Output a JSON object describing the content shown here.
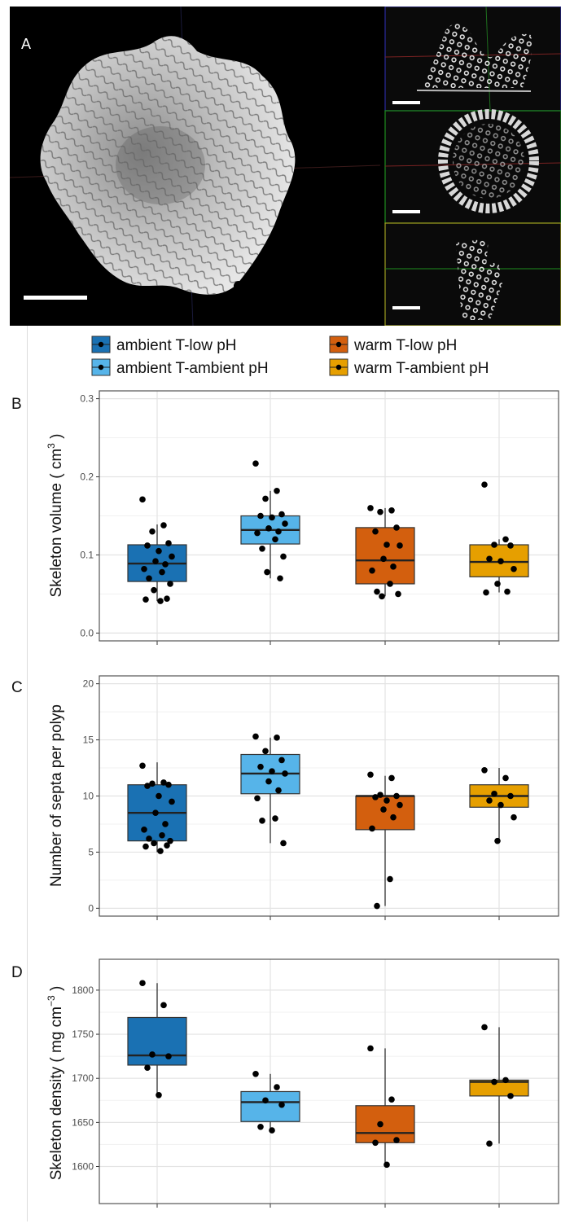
{
  "panel_a": {
    "label": "A"
  },
  "legend": {
    "items": [
      {
        "label": "ambient T-low pH",
        "color": "#1a71b3"
      },
      {
        "label": "warm T-low pH",
        "color": "#d35f0e"
      },
      {
        "label": "ambient T-ambient pH",
        "color": "#56b4e9"
      },
      {
        "label": "warm T-ambient pH",
        "color": "#e69f00"
      }
    ]
  },
  "chart_data": [
    {
      "type": "box",
      "panel": "B",
      "ylabel": "Skeleton volume ( cm",
      "ylabel_sup": "3",
      "ylabel_end": " )",
      "ylim": [
        -0.01,
        0.31
      ],
      "yticks": [
        0.0,
        0.1,
        0.2,
        0.3
      ],
      "ytick_labels": [
        "0.0",
        "0.1",
        "0.2",
        "0.3"
      ],
      "groups": [
        {
          "name": "ambient T-low pH",
          "color": "#1a71b3",
          "q1": 0.066,
          "median": 0.089,
          "q3": 0.113,
          "whisker_low": 0.041,
          "whisker_high": 0.139,
          "points": [
            0.171,
            0.138,
            0.13,
            0.115,
            0.112,
            0.105,
            0.098,
            0.092,
            0.088,
            0.082,
            0.078,
            0.07,
            0.063,
            0.055,
            0.044,
            0.043,
            0.041
          ]
        },
        {
          "name": "ambient T-ambient pH",
          "color": "#56b4e9",
          "q1": 0.114,
          "median": 0.132,
          "q3": 0.15,
          "whisker_low": 0.07,
          "whisker_high": 0.182,
          "points": [
            0.217,
            0.182,
            0.172,
            0.152,
            0.15,
            0.148,
            0.14,
            0.134,
            0.13,
            0.128,
            0.12,
            0.108,
            0.098,
            0.078,
            0.07
          ]
        },
        {
          "name": "warm T-low pH",
          "color": "#d35f0e",
          "q1": 0.063,
          "median": 0.093,
          "q3": 0.135,
          "whisker_low": 0.047,
          "whisker_high": 0.16,
          "points": [
            0.16,
            0.157,
            0.155,
            0.135,
            0.13,
            0.113,
            0.112,
            0.095,
            0.085,
            0.08,
            0.063,
            0.053,
            0.05,
            0.047
          ]
        },
        {
          "name": "warm T-ambient pH",
          "color": "#e69f00",
          "q1": 0.072,
          "median": 0.091,
          "q3": 0.113,
          "whisker_low": 0.052,
          "whisker_high": 0.12,
          "points": [
            0.19,
            0.12,
            0.113,
            0.112,
            0.095,
            0.092,
            0.082,
            0.063,
            0.053,
            0.052
          ]
        }
      ]
    },
    {
      "type": "box",
      "panel": "C",
      "ylabel": "Number of septa per polyp",
      "ylabel_sup": "",
      "ylabel_end": "",
      "ylim": [
        -0.7,
        20.7
      ],
      "yticks": [
        0,
        5,
        10,
        15,
        20
      ],
      "ytick_labels": [
        "0",
        "5",
        "10",
        "15",
        "20"
      ],
      "groups": [
        {
          "name": "ambient T-low pH",
          "color": "#1a71b3",
          "q1": 6,
          "median": 8.5,
          "q3": 11,
          "whisker_low": 5,
          "whisker_high": 13,
          "points": [
            12.7,
            11.2,
            11.1,
            11,
            10.9,
            10,
            9.5,
            8.5,
            7.5,
            7,
            6.5,
            6.2,
            6,
            5.8,
            5.6,
            5.5,
            5.1
          ]
        },
        {
          "name": "ambient T-ambient pH",
          "color": "#56b4e9",
          "q1": 10.2,
          "median": 12,
          "q3": 13.7,
          "whisker_low": 5.8,
          "whisker_high": 15.2,
          "points": [
            15.3,
            15.2,
            14,
            13.2,
            12.6,
            12.2,
            12,
            11.3,
            10.5,
            9.8,
            8,
            7.8,
            5.8
          ]
        },
        {
          "name": "warm T-low pH",
          "color": "#d35f0e",
          "q1": 7,
          "median": 10,
          "q3": 10,
          "whisker_low": 0.2,
          "whisker_high": 11.8,
          "points": [
            11.9,
            11.6,
            10.1,
            10,
            9.9,
            9.6,
            9.2,
            8.8,
            8.1,
            7.1,
            2.6,
            0.2
          ]
        },
        {
          "name": "warm T-ambient pH",
          "color": "#e69f00",
          "q1": 9,
          "median": 10,
          "q3": 11,
          "whisker_low": 6,
          "whisker_high": 12.5,
          "points": [
            12.3,
            11.6,
            10.2,
            10,
            9.6,
            9.2,
            8.1,
            6
          ]
        }
      ]
    },
    {
      "type": "box",
      "panel": "D",
      "ylabel": "Skeleton density ( mg  cm",
      "ylabel_sup": "−3",
      "ylabel_end": " )",
      "ylim": [
        1558,
        1835
      ],
      "yticks": [
        1600,
        1650,
        1700,
        1750,
        1800
      ],
      "ytick_labels": [
        "1600",
        "1650",
        "1700",
        "1750",
        "1800"
      ],
      "groups": [
        {
          "name": "ambient T-low pH",
          "color": "#1a71b3",
          "q1": 1715,
          "median": 1726,
          "q3": 1769,
          "whisker_low": 1680,
          "whisker_high": 1808,
          "points": [
            1808,
            1783,
            1727,
            1725,
            1712,
            1681
          ]
        },
        {
          "name": "ambient T-ambient pH",
          "color": "#56b4e9",
          "q1": 1651,
          "median": 1673,
          "q3": 1685,
          "whisker_low": 1641,
          "whisker_high": 1705,
          "points": [
            1705,
            1690,
            1675,
            1670,
            1645,
            1641
          ]
        },
        {
          "name": "warm T-low pH",
          "color": "#d35f0e",
          "q1": 1627,
          "median": 1638,
          "q3": 1669,
          "whisker_low": 1602,
          "whisker_high": 1734,
          "points": [
            1734,
            1676,
            1648,
            1630,
            1627,
            1602
          ]
        },
        {
          "name": "warm T-ambient pH",
          "color": "#e69f00",
          "q1": 1680,
          "median": 1696,
          "q3": 1698,
          "whisker_low": 1626,
          "whisker_high": 1758,
          "points": [
            1758,
            1698,
            1696,
            1680,
            1626
          ]
        }
      ]
    }
  ]
}
